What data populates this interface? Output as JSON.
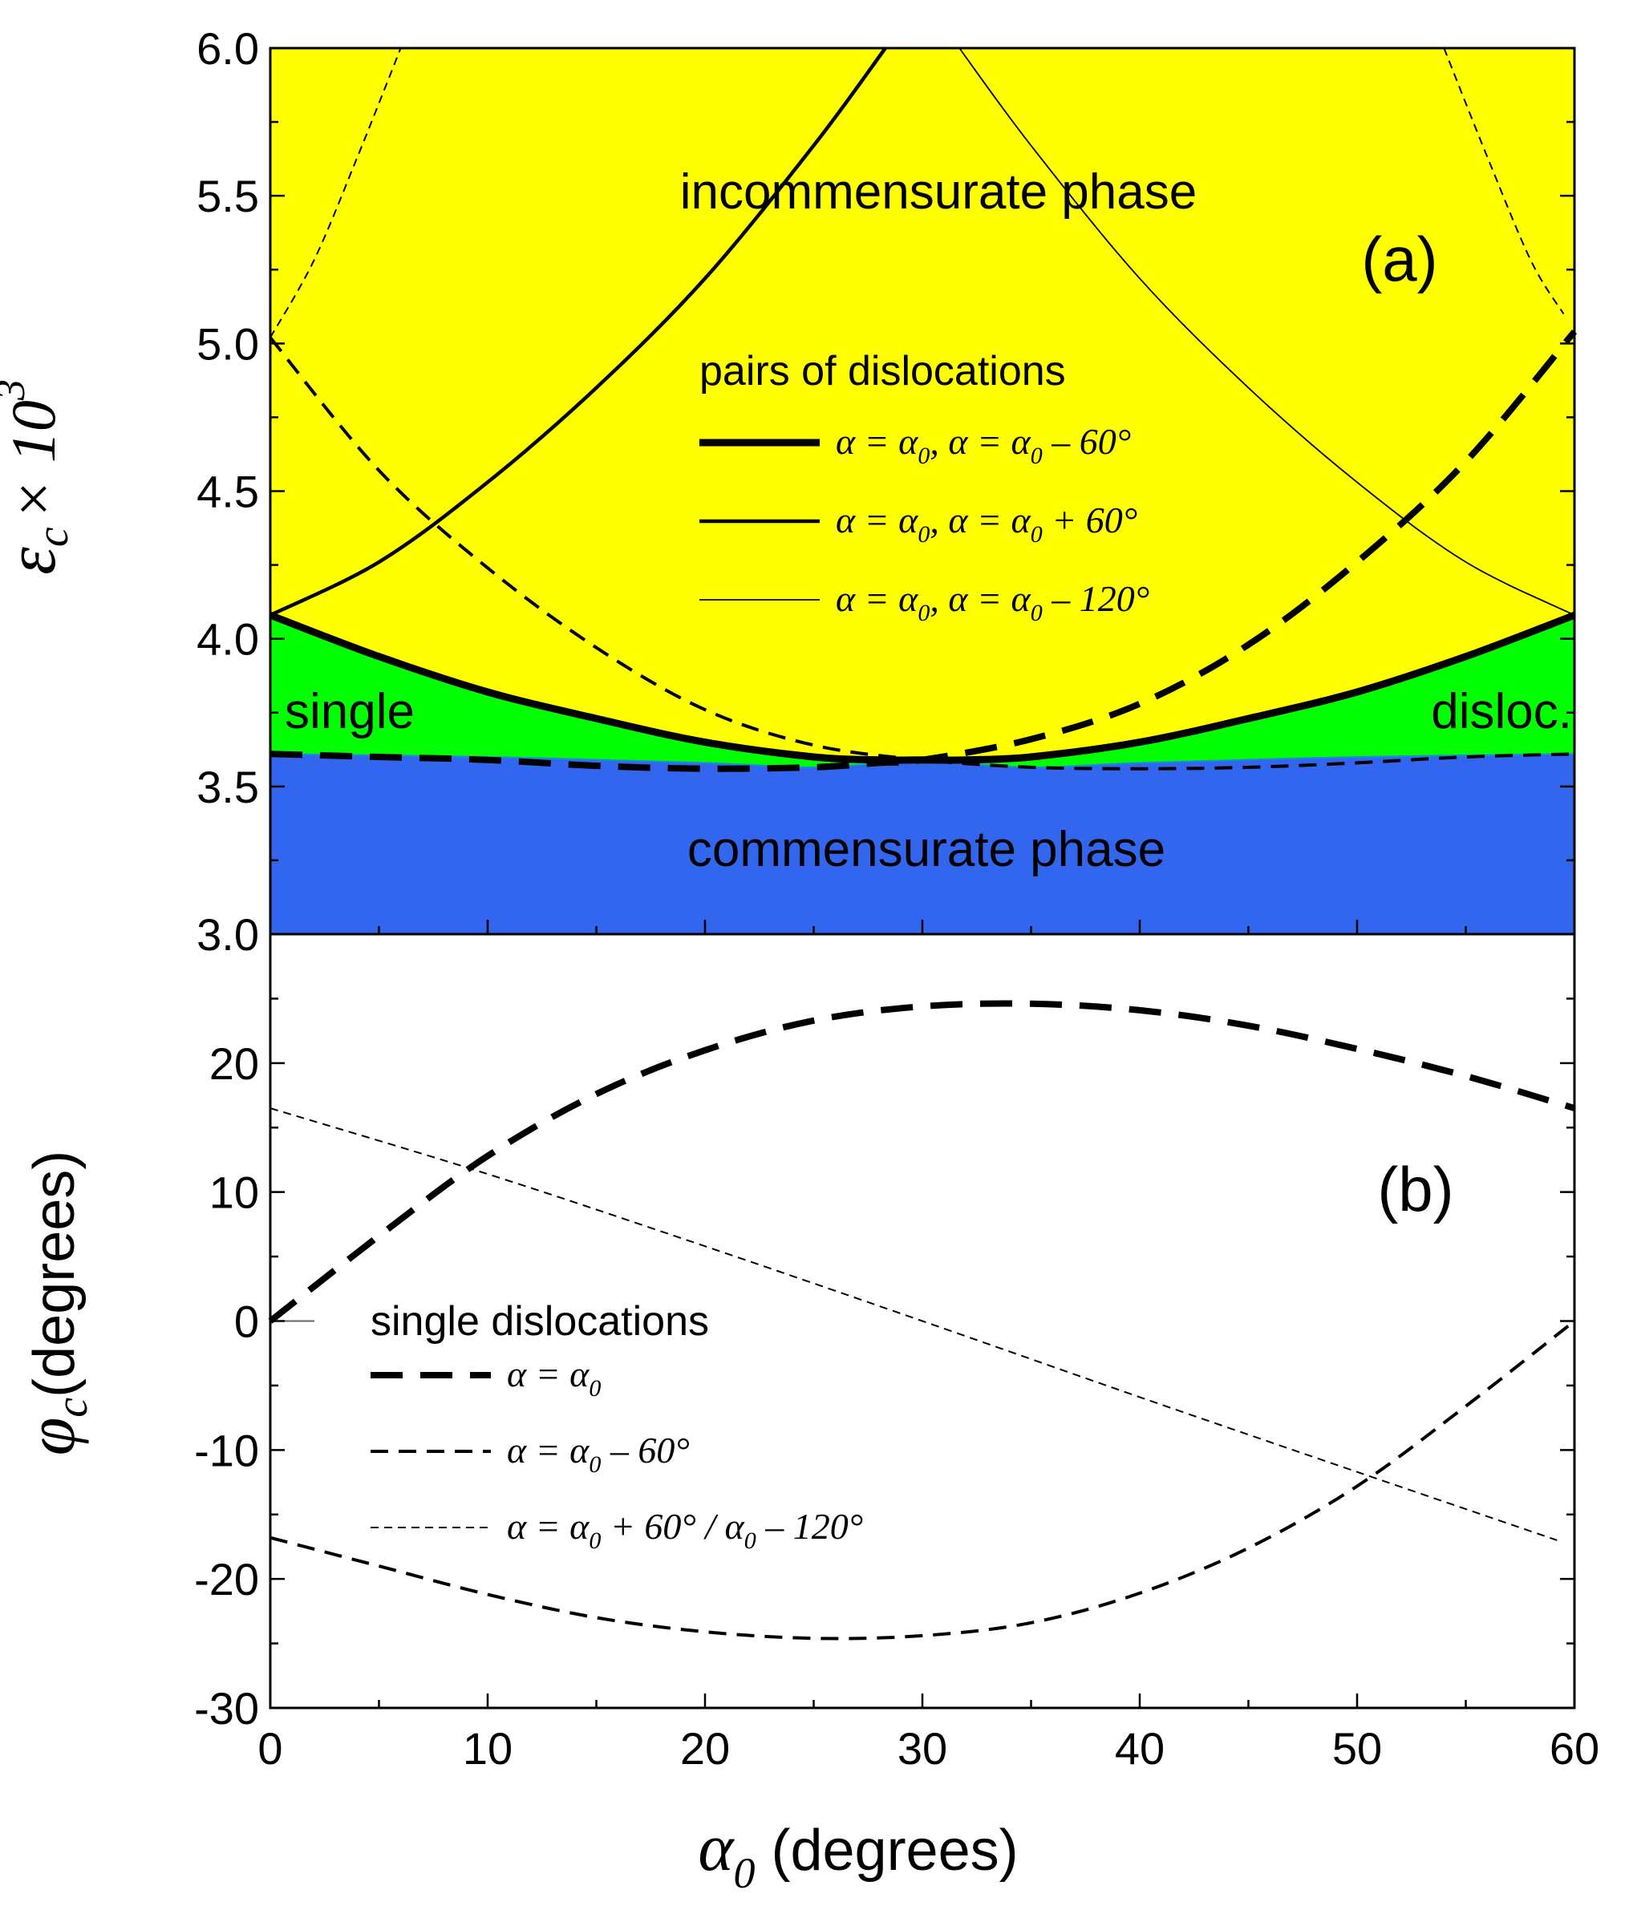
{
  "chart_data": [
    {
      "panel": "(a)",
      "type": "line",
      "ylabel": {
        "symbol": "ε",
        "sub": "c",
        "text": "× 10",
        "sup": "3"
      },
      "xlim": [
        0,
        60
      ],
      "ylim": [
        3.0,
        6.0
      ],
      "x_ticks": [
        "0",
        "10",
        "20",
        "30",
        "40",
        "50",
        "60"
      ],
      "y_ticks": [
        "3.0",
        "3.5",
        "4.0",
        "4.5",
        "5.0",
        "5.5",
        "6.0"
      ],
      "region_labels": {
        "incommensurate": "incommensurate phase",
        "single": "single",
        "disloc": "disloc.",
        "commensurate": "commensurate phase"
      },
      "region_colors": {
        "incommensurate": "#ffff00",
        "single": "#00ff00",
        "commensurate": "#3366ee"
      },
      "legend_title": "pairs of dislocations",
      "legend": [
        {
          "a": "α = α",
          "sub1": "0",
          "b": ", α = α",
          "sub2": "0",
          "c": " – 60°"
        },
        {
          "a": "α = α",
          "sub1": "0",
          "b": ", α = α",
          "sub2": "0",
          "c": " + 60°"
        },
        {
          "a": "α = α",
          "sub1": "0",
          "b": ", α = α",
          "sub2": "0",
          "c": " – 120°"
        }
      ],
      "series": [
        {
          "style": "pair-thick-solid",
          "x": [
            0,
            5,
            10,
            15,
            20,
            25,
            28,
            30,
            32,
            35,
            40,
            45,
            50,
            55,
            60
          ],
          "y": [
            4.08,
            3.94,
            3.82,
            3.73,
            3.65,
            3.6,
            3.59,
            3.59,
            3.59,
            3.6,
            3.65,
            3.73,
            3.82,
            3.94,
            4.08
          ]
        },
        {
          "style": "pair-medium-solid",
          "x": [
            0,
            5,
            10,
            15,
            20,
            25,
            28.3
          ],
          "y": [
            4.08,
            4.26,
            4.53,
            4.85,
            5.22,
            5.67,
            6.0
          ]
        },
        {
          "style": "pair-thin-solid",
          "x": [
            31.7,
            35,
            40,
            45,
            50,
            55,
            60
          ],
          "y": [
            6.0,
            5.67,
            5.22,
            4.85,
            4.53,
            4.26,
            4.08
          ]
        },
        {
          "style": "single-thick-dash",
          "x": [
            0,
            5,
            10,
            15,
            20,
            25,
            28,
            30,
            35,
            40,
            45,
            50,
            55,
            60
          ],
          "y": [
            3.61,
            3.6,
            3.59,
            3.57,
            3.56,
            3.565,
            3.58,
            3.59,
            3.66,
            3.78,
            3.98,
            4.26,
            4.6,
            5.04
          ]
        },
        {
          "style": "single-medium-dash",
          "x": [
            0,
            5,
            10,
            15,
            20,
            25,
            30,
            35,
            40,
            45,
            50,
            55,
            60
          ],
          "y": [
            5.02,
            4.57,
            4.24,
            3.97,
            3.76,
            3.64,
            3.59,
            3.565,
            3.56,
            3.565,
            3.58,
            3.6,
            3.61
          ]
        },
        {
          "style": "single-thin-dash",
          "x": [
            0,
            2,
            4,
            6
          ],
          "y": [
            5.02,
            5.28,
            5.63,
            6.0
          ]
        },
        {
          "style": "single-thin-dash",
          "x": [
            54,
            56,
            58,
            59.5
          ],
          "y": [
            6.0,
            5.63,
            5.28,
            5.1
          ]
        }
      ]
    },
    {
      "panel": "(b)",
      "type": "line",
      "ylabel": {
        "symbol": "φ",
        "sub": "c",
        "text": "(degrees)"
      },
      "xlabel": {
        "symbol": "α",
        "sub": "0",
        "text": " (degrees)"
      },
      "xlim": [
        0,
        60
      ],
      "ylim": [
        -30,
        30
      ],
      "x_ticks": [
        "0",
        "10",
        "20",
        "30",
        "40",
        "50",
        "60"
      ],
      "y_ticks": [
        "-30",
        "-20",
        "-10",
        "0",
        "10",
        "20",
        "30"
      ],
      "legend_title": "single dislocations",
      "legend": [
        {
          "a": "α = α",
          "sub1": "0",
          "b": ""
        },
        {
          "a": "α = α",
          "sub1": "0",
          "b": " – 60°"
        },
        {
          "a": "α = α",
          "sub1": "0",
          "b": " + 60° / α",
          "sub2": "0",
          "c": " – 120°"
        }
      ],
      "series": [
        {
          "style": "single-thick-dash",
          "x": [
            0,
            5,
            10,
            15,
            20,
            25,
            30,
            35,
            40,
            45,
            50,
            55,
            60
          ],
          "y": [
            0,
            6.6,
            12.8,
            17.6,
            21.0,
            23.3,
            24.4,
            24.6,
            24.1,
            22.9,
            21.1,
            19.0,
            16.5
          ]
        },
        {
          "style": "single-medium-dash",
          "x": [
            0,
            5,
            10,
            15,
            20,
            25,
            30,
            35,
            40,
            45,
            50,
            55,
            60
          ],
          "y": [
            -16.8,
            -19.0,
            -21.2,
            -23.0,
            -24.1,
            -24.6,
            -24.4,
            -23.4,
            -21.1,
            -17.6,
            -12.8,
            -6.6,
            0
          ]
        },
        {
          "style": "single-thin-dash",
          "x": [
            0,
            10,
            20,
            30,
            40,
            50,
            59.2
          ],
          "y": [
            16.5,
            11.4,
            5.8,
            0,
            -5.9,
            -11.7,
            -17.0
          ]
        }
      ]
    }
  ]
}
